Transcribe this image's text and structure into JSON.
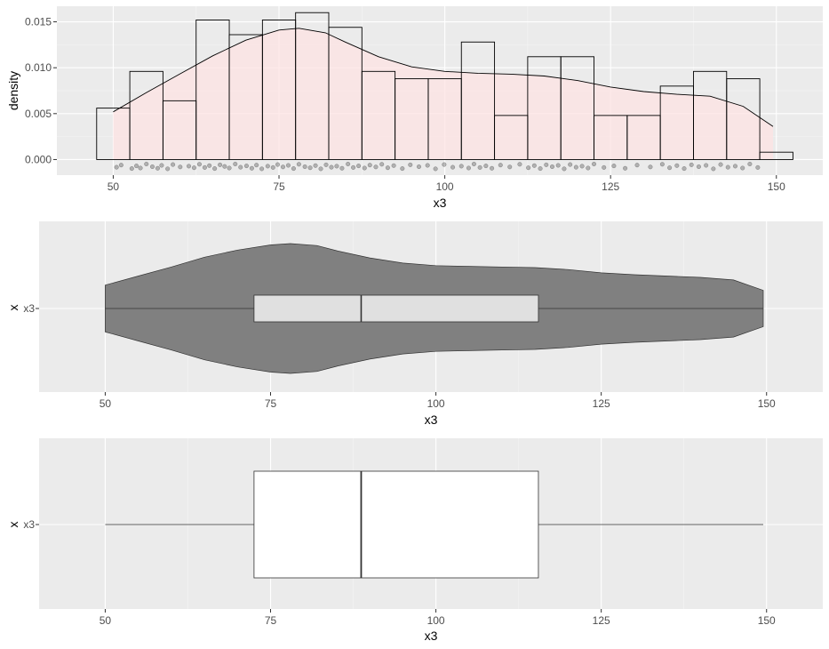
{
  "chart_data": [
    {
      "type": "histogram",
      "xlabel": "x3",
      "ylabel": "density",
      "xlim": [
        41.5,
        157
      ],
      "ylim": [
        -0.0017,
        0.0167
      ],
      "x_ticks": [
        50,
        75,
        100,
        125,
        150
      ],
      "y_ticks": [
        0.0,
        0.005,
        0.01,
        0.015
      ],
      "y_tick_labels": [
        "0.000",
        "0.005",
        "0.010",
        "0.015"
      ],
      "bin_width": 5,
      "bins": [
        {
          "x0": 47.5,
          "x1": 52.5,
          "density": 0.0056
        },
        {
          "x0": 52.5,
          "x1": 57.5,
          "density": 0.0096
        },
        {
          "x0": 57.5,
          "x1": 62.5,
          "density": 0.0064
        },
        {
          "x0": 62.5,
          "x1": 67.5,
          "density": 0.0152
        },
        {
          "x0": 67.5,
          "x1": 72.5,
          "density": 0.0136
        },
        {
          "x0": 72.5,
          "x1": 77.5,
          "density": 0.0152
        },
        {
          "x0": 77.5,
          "x1": 82.5,
          "density": 0.016
        },
        {
          "x0": 82.5,
          "x1": 87.5,
          "density": 0.0144
        },
        {
          "x0": 87.5,
          "x1": 92.5,
          "density": 0.0096
        },
        {
          "x0": 92.5,
          "x1": 97.5,
          "density": 0.0088
        },
        {
          "x0": 97.5,
          "x1": 102.5,
          "density": 0.0088
        },
        {
          "x0": 102.5,
          "x1": 107.5,
          "density": 0.0128
        },
        {
          "x0": 107.5,
          "x1": 112.5,
          "density": 0.0048
        },
        {
          "x0": 112.5,
          "x1": 117.5,
          "density": 0.0112
        },
        {
          "x0": 117.5,
          "x1": 122.5,
          "density": 0.0112
        },
        {
          "x0": 122.5,
          "x1": 127.5,
          "density": 0.0048
        },
        {
          "x0": 127.5,
          "x1": 132.5,
          "density": 0.0048
        },
        {
          "x0": 132.5,
          "x1": 137.5,
          "density": 0.008
        },
        {
          "x0": 137.5,
          "x1": 142.5,
          "density": 0.0096
        },
        {
          "x0": 142.5,
          "x1": 147.5,
          "density": 0.0088
        },
        {
          "x0": 147.5,
          "x1": 152.5,
          "density": 0.0008
        }
      ],
      "density_curve": {
        "x": [
          50,
          55,
          60,
          65,
          70,
          75,
          78,
          82,
          85,
          90,
          95,
          100,
          105,
          110,
          115,
          120,
          125,
          130,
          135,
          140,
          145,
          149.5
        ],
        "y": [
          0.0052,
          0.0073,
          0.0093,
          0.0113,
          0.013,
          0.0141,
          0.0143,
          0.0138,
          0.0128,
          0.0112,
          0.0101,
          0.0096,
          0.0094,
          0.0093,
          0.0091,
          0.0086,
          0.0079,
          0.0074,
          0.0071,
          0.0069,
          0.0058,
          0.0036
        ]
      },
      "density_fill_color": "#fde3e3",
      "rug_points": [
        50.5,
        51.2,
        52.8,
        53.5,
        54.1,
        55.0,
        55.9,
        56.7,
        57.3,
        58.2,
        59.0,
        60.1,
        61.4,
        62.2,
        63.0,
        63.8,
        64.5,
        65.3,
        66.1,
        66.8,
        67.5,
        68.4,
        69.2,
        70.1,
        70.9,
        71.6,
        72.4,
        73.3,
        74.1,
        74.8,
        75.6,
        76.4,
        77.2,
        78.0,
        78.9,
        79.7,
        80.5,
        81.3,
        82.1,
        82.9,
        83.7,
        84.5,
        85.4,
        86.2,
        87.0,
        87.9,
        88.7,
        89.6,
        90.5,
        91.4,
        92.3,
        93.6,
        94.8,
        96.1,
        97.4,
        98.6,
        99.9,
        101.2,
        102.5,
        103.6,
        104.4,
        105.3,
        106.2,
        107.1,
        108.4,
        109.8,
        111.3,
        112.6,
        113.5,
        114.4,
        115.3,
        116.2,
        117.1,
        118.0,
        118.9,
        119.8,
        120.7,
        121.6,
        122.5,
        124.0,
        125.5,
        127.2,
        129.0,
        131.0,
        132.8,
        133.9,
        135.0,
        136.1,
        137.2,
        138.3,
        139.4,
        140.5,
        141.6,
        142.7,
        143.8,
        144.9,
        146.0,
        147.2
      ],
      "rug_jitter": [
        0.3,
        -0.5,
        0.8,
        -0.2,
        0.6,
        -0.9,
        0.1,
        0.7,
        -0.4,
        0.9,
        -0.7,
        0.2,
        -0.1,
        0.5,
        -0.8,
        0.4,
        -0.3,
        0.8,
        -0.6,
        0.0,
        0.6,
        -0.9,
        0.3,
        -0.2,
        0.7,
        -0.5,
        0.9,
        -0.1,
        0.4,
        -0.7,
        0.2,
        -0.4,
        0.8,
        -0.8,
        0.1,
        0.5,
        -0.3,
        0.9,
        -0.6,
        0.3,
        -0.1,
        0.7,
        -0.9,
        0.4,
        -0.2,
        0.6,
        -0.5,
        0.2,
        -0.8,
        0.5,
        -0.3,
        0.8,
        -0.6,
        0.1,
        -0.4,
        0.9,
        -0.7,
        0.3,
        -0.1,
        0.6,
        -0.9,
        0.4,
        -0.2,
        0.7,
        -0.5,
        0.2,
        -0.8,
        0.5,
        -0.3,
        0.8,
        -0.6,
        0.1,
        -0.4,
        0.9,
        -0.7,
        0.3,
        -0.1,
        0.6,
        -0.9,
        0.4,
        -0.2,
        0.7,
        -0.5,
        0.2,
        -0.8,
        0.5,
        -0.3,
        0.8,
        -0.6,
        0.1,
        -0.4,
        0.9,
        -0.7,
        0.3,
        -0.1,
        0.6,
        -0.9,
        0.4
      ]
    },
    {
      "type": "violin",
      "xlabel": "x3",
      "ylabel": "x",
      "category": "x3",
      "xlim": [
        40,
        158.5
      ],
      "x_ticks": [
        50,
        75,
        100,
        125,
        150
      ],
      "violin_color": "#808080",
      "violin_profile": {
        "x": [
          50,
          55,
          60,
          65,
          70,
          75,
          78,
          82,
          85,
          90,
          95,
          100,
          105,
          110,
          115,
          120,
          125,
          130,
          135,
          140,
          145,
          149.5
        ],
        "half_width": [
          0.36,
          0.5,
          0.64,
          0.79,
          0.9,
          0.98,
          1.0,
          0.97,
          0.89,
          0.78,
          0.7,
          0.66,
          0.65,
          0.64,
          0.63,
          0.6,
          0.55,
          0.52,
          0.5,
          0.48,
          0.44,
          0.28
        ]
      },
      "box": {
        "min": 50,
        "q1": 72.5,
        "median": 88.7,
        "q3": 115.5,
        "max": 149.5
      },
      "box_fill": "#e0e0e0"
    },
    {
      "type": "boxplot",
      "xlabel": "x3",
      "ylabel": "x",
      "category": "x3",
      "xlim": [
        40,
        158.5
      ],
      "x_ticks": [
        50,
        75,
        100,
        125,
        150
      ],
      "box": {
        "min": 50,
        "q1": 72.5,
        "median": 88.7,
        "q3": 115.5,
        "max": 149.5
      },
      "box_fill": "#ffffff"
    }
  ]
}
